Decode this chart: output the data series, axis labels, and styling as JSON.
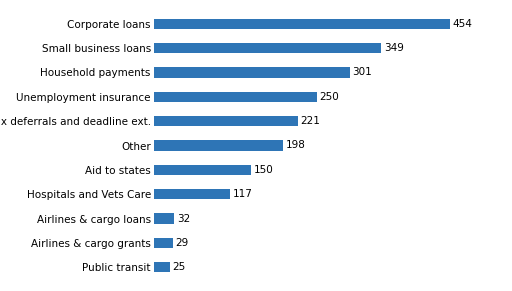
{
  "categories": [
    "Public transit",
    "Airlines & cargo grants",
    "Airlines & cargo loans",
    "Hospitals and Vets Care",
    "Aid to states",
    "Other",
    "Tax deferrals and deadline ext.",
    "Unemployment insurance",
    "Household payments",
    "Small business loans",
    "Corporate loans"
  ],
  "values": [
    25,
    29,
    32,
    117,
    150,
    198,
    221,
    250,
    301,
    349,
    454
  ],
  "bar_color": "#2E75B6",
  "background_color": "#ffffff",
  "label_fontsize": 7.5,
  "value_fontsize": 7.5,
  "bar_height": 0.42,
  "xlim": [
    0,
    510
  ]
}
